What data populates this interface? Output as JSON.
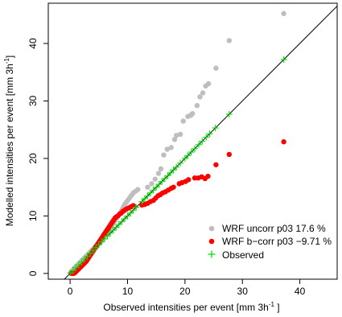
{
  "chart_data": {
    "type": "scatter",
    "xlabel": "Observed intensities per event [mm 3h",
    "xlabel_sup": "-1",
    "xlabel_tail": " ]",
    "ylabel": "Modelled intensities per event [mm 3h",
    "ylabel_sup": "-1",
    "ylabel_tail": "]",
    "xlim": [
      -3.8,
      46.5
    ],
    "ylim": [
      -1,
      47
    ],
    "xticks": [
      0,
      10,
      20,
      30,
      40
    ],
    "yticks": [
      0,
      10,
      20,
      30,
      40
    ],
    "reference_line": "1:1",
    "legend_position": "bottom-right",
    "colors": {
      "uncorr": "#bebebe",
      "bcorr": "#ff0000",
      "observed": "#00dd00",
      "line": "#000000"
    },
    "series": [
      {
        "name": "WRF uncorr p03 17.6 %",
        "marker": "circle",
        "color": "#bebebe",
        "points": [
          [
            0.1,
            0.1
          ],
          [
            0.3,
            0.4
          ],
          [
            0.5,
            0.6
          ],
          [
            0.7,
            0.9
          ],
          [
            0.9,
            1.1
          ],
          [
            1.1,
            1.3
          ],
          [
            1.3,
            1.5
          ],
          [
            1.5,
            1.7
          ],
          [
            1.7,
            1.9
          ],
          [
            1.9,
            2.1
          ],
          [
            2.1,
            2.3
          ],
          [
            2.3,
            2.5
          ],
          [
            2.5,
            2.7
          ],
          [
            2.7,
            2.9
          ],
          [
            2.9,
            3.1
          ],
          [
            3.1,
            3.3
          ],
          [
            3.3,
            3.5
          ],
          [
            3.5,
            3.7
          ],
          [
            3.7,
            3.9
          ],
          [
            3.9,
            4.1
          ],
          [
            4.1,
            4.3
          ],
          [
            4.3,
            4.5
          ],
          [
            4.5,
            4.7
          ],
          [
            4.7,
            4.9
          ],
          [
            4.9,
            5.1
          ],
          [
            5.1,
            5.3
          ],
          [
            5.3,
            5.5
          ],
          [
            5.5,
            5.7
          ],
          [
            5.7,
            6.0
          ],
          [
            5.9,
            6.3
          ],
          [
            6.1,
            6.6
          ],
          [
            6.3,
            6.9
          ],
          [
            6.5,
            7.2
          ],
          [
            6.7,
            7.5
          ],
          [
            6.9,
            7.8
          ],
          [
            7.1,
            8.1
          ],
          [
            7.3,
            8.4
          ],
          [
            7.5,
            8.7
          ],
          [
            7.7,
            9.0
          ],
          [
            7.9,
            9.3
          ],
          [
            8.1,
            9.6
          ],
          [
            8.3,
            9.9
          ],
          [
            8.5,
            10.2
          ],
          [
            8.7,
            10.5
          ],
          [
            8.9,
            10.8
          ],
          [
            9.1,
            11.2
          ],
          [
            9.3,
            11.6
          ],
          [
            9.5,
            12.0
          ],
          [
            9.8,
            12.4
          ],
          [
            10.1,
            12.8
          ],
          [
            10.4,
            13.2
          ],
          [
            10.7,
            13.6
          ],
          [
            11.0,
            14.0
          ],
          [
            11.4,
            14.3
          ],
          [
            11.8,
            14.6
          ],
          [
            13.5,
            15.0
          ],
          [
            14.2,
            15.6
          ],
          [
            14.8,
            16.4
          ],
          [
            15.4,
            17.4
          ],
          [
            15.8,
            18.2
          ],
          [
            16.3,
            20.6
          ],
          [
            16.9,
            21.6
          ],
          [
            17.6,
            21.9
          ],
          [
            18.2,
            23.3
          ],
          [
            18.5,
            24.0
          ],
          [
            19.2,
            24.2
          ],
          [
            19.7,
            26.5
          ],
          [
            20.5,
            27.3
          ],
          [
            21.0,
            27.5
          ],
          [
            21.3,
            27.8
          ],
          [
            22.1,
            29.2
          ],
          [
            22.6,
            30.7
          ],
          [
            23.1,
            31.4
          ],
          [
            23.6,
            32.6
          ],
          [
            24.1,
            33.0
          ],
          [
            25.4,
            35.7
          ],
          [
            27.7,
            40.5
          ],
          [
            37.2,
            45.2
          ]
        ]
      },
      {
        "name": "WRF b−corr p03 −9.71 %",
        "marker": "circle",
        "color": "#ff0000",
        "points": [
          [
            0.2,
            0.0
          ],
          [
            0.4,
            0.0
          ],
          [
            0.6,
            0.0
          ],
          [
            0.8,
            0.1
          ],
          [
            1.0,
            0.3
          ],
          [
            1.2,
            0.5
          ],
          [
            1.4,
            0.7
          ],
          [
            1.6,
            0.9
          ],
          [
            1.8,
            1.1
          ],
          [
            2.0,
            1.3
          ],
          [
            2.2,
            1.5
          ],
          [
            2.4,
            1.7
          ],
          [
            2.6,
            1.9
          ],
          [
            2.8,
            2.1
          ],
          [
            3.0,
            2.4
          ],
          [
            3.2,
            2.7
          ],
          [
            3.4,
            3.0
          ],
          [
            3.6,
            3.3
          ],
          [
            3.8,
            3.6
          ],
          [
            4.0,
            3.9
          ],
          [
            4.2,
            4.2
          ],
          [
            4.4,
            4.5
          ],
          [
            4.6,
            4.8
          ],
          [
            4.8,
            5.1
          ],
          [
            5.0,
            5.4
          ],
          [
            5.2,
            5.7
          ],
          [
            5.4,
            6.0
          ],
          [
            5.6,
            6.3
          ],
          [
            5.8,
            6.6
          ],
          [
            6.0,
            6.9
          ],
          [
            6.2,
            7.2
          ],
          [
            6.4,
            7.5
          ],
          [
            6.6,
            7.8
          ],
          [
            6.8,
            8.1
          ],
          [
            7.0,
            8.4
          ],
          [
            7.2,
            8.7
          ],
          [
            7.4,
            9.0
          ],
          [
            7.6,
            9.3
          ],
          [
            7.8,
            9.6
          ],
          [
            8.0,
            9.8
          ],
          [
            8.3,
            10.0
          ],
          [
            8.6,
            10.3
          ],
          [
            8.9,
            10.5
          ],
          [
            9.2,
            10.8
          ],
          [
            9.5,
            11.0
          ],
          [
            9.8,
            11.2
          ],
          [
            10.2,
            11.4
          ],
          [
            10.6,
            11.6
          ],
          [
            11.0,
            11.8
          ],
          [
            12.5,
            11.9
          ],
          [
            13.0,
            12.0
          ],
          [
            13.5,
            12.2
          ],
          [
            14.0,
            12.5
          ],
          [
            14.5,
            12.7
          ],
          [
            14.9,
            13.1
          ],
          [
            15.3,
            13.5
          ],
          [
            15.7,
            13.7
          ],
          [
            16.1,
            14.0
          ],
          [
            16.6,
            14.2
          ],
          [
            17.1,
            14.5
          ],
          [
            17.6,
            14.8
          ],
          [
            18.0,
            15.0
          ],
          [
            19.0,
            15.6
          ],
          [
            19.5,
            15.8
          ],
          [
            20.1,
            16.0
          ],
          [
            20.6,
            16.3
          ],
          [
            21.7,
            16.6
          ],
          [
            22.3,
            16.6
          ],
          [
            22.9,
            16.8
          ],
          [
            23.5,
            16.5
          ],
          [
            24.0,
            16.9
          ],
          [
            25.4,
            18.9
          ],
          [
            27.7,
            20.7
          ],
          [
            37.2,
            22.9
          ]
        ]
      },
      {
        "name": "Observed",
        "marker": "plus",
        "color": "#00dd00",
        "points": [
          [
            0.1,
            0.1
          ],
          [
            0.5,
            0.5
          ],
          [
            1.0,
            1.0
          ],
          [
            1.5,
            1.5
          ],
          [
            2.0,
            2.0
          ],
          [
            2.5,
            2.5
          ],
          [
            3.0,
            3.0
          ],
          [
            3.5,
            3.5
          ],
          [
            4.0,
            4.0
          ],
          [
            4.5,
            4.5
          ],
          [
            5.0,
            5.0
          ],
          [
            5.5,
            5.5
          ],
          [
            6.0,
            6.0
          ],
          [
            6.5,
            6.5
          ],
          [
            7.0,
            7.0
          ],
          [
            7.5,
            7.5
          ],
          [
            8.0,
            8.0
          ],
          [
            8.5,
            8.5
          ],
          [
            9.0,
            9.0
          ],
          [
            9.5,
            9.5
          ],
          [
            10.0,
            10.0
          ],
          [
            10.5,
            10.5
          ],
          [
            11.0,
            11.0
          ],
          [
            11.5,
            11.5
          ],
          [
            12.5,
            12.5
          ],
          [
            13.0,
            13.0
          ],
          [
            13.5,
            13.5
          ],
          [
            14.0,
            14.0
          ],
          [
            14.5,
            14.5
          ],
          [
            15.0,
            15.0
          ],
          [
            15.5,
            15.5
          ],
          [
            16.0,
            16.0
          ],
          [
            16.5,
            16.5
          ],
          [
            17.0,
            17.0
          ],
          [
            17.5,
            17.5
          ],
          [
            18.0,
            18.0
          ],
          [
            18.5,
            18.5
          ],
          [
            19.2,
            19.2
          ],
          [
            20.0,
            20.0
          ],
          [
            20.5,
            20.5
          ],
          [
            21.1,
            21.1
          ],
          [
            21.7,
            21.7
          ],
          [
            22.4,
            22.4
          ],
          [
            23.0,
            23.0
          ],
          [
            23.7,
            23.7
          ],
          [
            24.3,
            24.3
          ],
          [
            25.3,
            25.3
          ],
          [
            27.7,
            27.7
          ],
          [
            37.2,
            37.2
          ]
        ]
      }
    ]
  }
}
